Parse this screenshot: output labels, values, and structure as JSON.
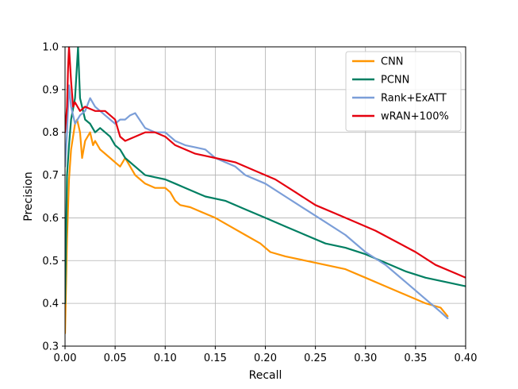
{
  "chart_data": {
    "type": "line",
    "title": "",
    "xlabel": "Recall",
    "ylabel": "Precision",
    "xlim": [
      0.0,
      0.4
    ],
    "ylim": [
      0.3,
      1.0
    ],
    "xticks": [
      "0.00",
      "0.05",
      "0.10",
      "0.15",
      "0.20",
      "0.25",
      "0.30",
      "0.35",
      "0.40"
    ],
    "yticks": [
      "0.3",
      "0.4",
      "0.5",
      "0.6",
      "0.7",
      "0.8",
      "0.9",
      "1.0"
    ],
    "grid": true,
    "legend_position": "top-right",
    "series": [
      {
        "name": "CNN",
        "color": "#ff9500",
        "points": [
          [
            0.0,
            0.33
          ],
          [
            0.002,
            0.55
          ],
          [
            0.004,
            0.69
          ],
          [
            0.006,
            0.76
          ],
          [
            0.008,
            0.79
          ],
          [
            0.01,
            0.82
          ],
          [
            0.012,
            0.83
          ],
          [
            0.015,
            0.8
          ],
          [
            0.017,
            0.74
          ],
          [
            0.02,
            0.78
          ],
          [
            0.025,
            0.8
          ],
          [
            0.028,
            0.77
          ],
          [
            0.03,
            0.78
          ],
          [
            0.035,
            0.76
          ],
          [
            0.04,
            0.75
          ],
          [
            0.045,
            0.74
          ],
          [
            0.05,
            0.73
          ],
          [
            0.055,
            0.72
          ],
          [
            0.06,
            0.74
          ],
          [
            0.065,
            0.72
          ],
          [
            0.07,
            0.7
          ],
          [
            0.08,
            0.68
          ],
          [
            0.09,
            0.67
          ],
          [
            0.1,
            0.67
          ],
          [
            0.105,
            0.66
          ],
          [
            0.11,
            0.64
          ],
          [
            0.115,
            0.63
          ],
          [
            0.125,
            0.625
          ],
          [
            0.135,
            0.615
          ],
          [
            0.15,
            0.6
          ],
          [
            0.165,
            0.58
          ],
          [
            0.18,
            0.56
          ],
          [
            0.195,
            0.54
          ],
          [
            0.205,
            0.52
          ],
          [
            0.22,
            0.51
          ],
          [
            0.24,
            0.5
          ],
          [
            0.26,
            0.49
          ],
          [
            0.28,
            0.48
          ],
          [
            0.3,
            0.46
          ],
          [
            0.32,
            0.44
          ],
          [
            0.34,
            0.42
          ],
          [
            0.36,
            0.4
          ],
          [
            0.375,
            0.39
          ],
          [
            0.382,
            0.37
          ]
        ]
      },
      {
        "name": "PCNN",
        "color": "#007f62",
        "points": [
          [
            0.0,
            0.4
          ],
          [
            0.002,
            0.7
          ],
          [
            0.004,
            0.77
          ],
          [
            0.006,
            0.83
          ],
          [
            0.01,
            0.88
          ],
          [
            0.013,
            1.0
          ],
          [
            0.015,
            0.88
          ],
          [
            0.02,
            0.83
          ],
          [
            0.025,
            0.82
          ],
          [
            0.03,
            0.8
          ],
          [
            0.035,
            0.81
          ],
          [
            0.04,
            0.8
          ],
          [
            0.045,
            0.79
          ],
          [
            0.05,
            0.77
          ],
          [
            0.055,
            0.76
          ],
          [
            0.06,
            0.74
          ],
          [
            0.07,
            0.72
          ],
          [
            0.08,
            0.7
          ],
          [
            0.09,
            0.695
          ],
          [
            0.1,
            0.69
          ],
          [
            0.11,
            0.68
          ],
          [
            0.12,
            0.67
          ],
          [
            0.13,
            0.66
          ],
          [
            0.14,
            0.65
          ],
          [
            0.16,
            0.64
          ],
          [
            0.18,
            0.62
          ],
          [
            0.2,
            0.6
          ],
          [
            0.22,
            0.58
          ],
          [
            0.24,
            0.56
          ],
          [
            0.26,
            0.54
          ],
          [
            0.28,
            0.53
          ],
          [
            0.3,
            0.515
          ],
          [
            0.32,
            0.495
          ],
          [
            0.34,
            0.475
          ],
          [
            0.36,
            0.46
          ],
          [
            0.38,
            0.45
          ],
          [
            0.4,
            0.44
          ]
        ]
      },
      {
        "name": "Rank+ExATT",
        "color": "#7b9ed8",
        "points": [
          [
            0.0,
            0.72
          ],
          [
            0.002,
            0.8
          ],
          [
            0.004,
            0.91
          ],
          [
            0.006,
            0.86
          ],
          [
            0.01,
            0.82
          ],
          [
            0.015,
            0.84
          ],
          [
            0.02,
            0.85
          ],
          [
            0.025,
            0.88
          ],
          [
            0.03,
            0.86
          ],
          [
            0.04,
            0.84
          ],
          [
            0.05,
            0.82
          ],
          [
            0.055,
            0.83
          ],
          [
            0.06,
            0.83
          ],
          [
            0.065,
            0.84
          ],
          [
            0.07,
            0.845
          ],
          [
            0.08,
            0.81
          ],
          [
            0.09,
            0.8
          ],
          [
            0.1,
            0.8
          ],
          [
            0.11,
            0.78
          ],
          [
            0.12,
            0.77
          ],
          [
            0.13,
            0.765
          ],
          [
            0.14,
            0.76
          ],
          [
            0.15,
            0.74
          ],
          [
            0.16,
            0.73
          ],
          [
            0.17,
            0.72
          ],
          [
            0.18,
            0.7
          ],
          [
            0.2,
            0.68
          ],
          [
            0.22,
            0.65
          ],
          [
            0.24,
            0.62
          ],
          [
            0.26,
            0.59
          ],
          [
            0.28,
            0.56
          ],
          [
            0.3,
            0.52
          ],
          [
            0.32,
            0.49
          ],
          [
            0.34,
            0.45
          ],
          [
            0.36,
            0.41
          ],
          [
            0.375,
            0.38
          ],
          [
            0.382,
            0.365
          ]
        ]
      },
      {
        "name": "wRAN+100%",
        "color": "#e5000e",
        "points": [
          [
            0.0,
            0.8
          ],
          [
            0.002,
            0.86
          ],
          [
            0.003,
            0.95
          ],
          [
            0.004,
            1.0
          ],
          [
            0.006,
            0.92
          ],
          [
            0.008,
            0.86
          ],
          [
            0.01,
            0.87
          ],
          [
            0.015,
            0.85
          ],
          [
            0.02,
            0.86
          ],
          [
            0.025,
            0.855
          ],
          [
            0.03,
            0.85
          ],
          [
            0.04,
            0.85
          ],
          [
            0.05,
            0.83
          ],
          [
            0.055,
            0.79
          ],
          [
            0.06,
            0.78
          ],
          [
            0.07,
            0.79
          ],
          [
            0.08,
            0.8
          ],
          [
            0.09,
            0.8
          ],
          [
            0.1,
            0.79
          ],
          [
            0.11,
            0.77
          ],
          [
            0.12,
            0.76
          ],
          [
            0.13,
            0.75
          ],
          [
            0.14,
            0.745
          ],
          [
            0.15,
            0.74
          ],
          [
            0.17,
            0.73
          ],
          [
            0.19,
            0.71
          ],
          [
            0.21,
            0.69
          ],
          [
            0.23,
            0.66
          ],
          [
            0.25,
            0.63
          ],
          [
            0.27,
            0.61
          ],
          [
            0.29,
            0.59
          ],
          [
            0.31,
            0.57
          ],
          [
            0.33,
            0.545
          ],
          [
            0.35,
            0.52
          ],
          [
            0.37,
            0.49
          ],
          [
            0.39,
            0.47
          ],
          [
            0.4,
            0.46
          ]
        ]
      }
    ]
  }
}
